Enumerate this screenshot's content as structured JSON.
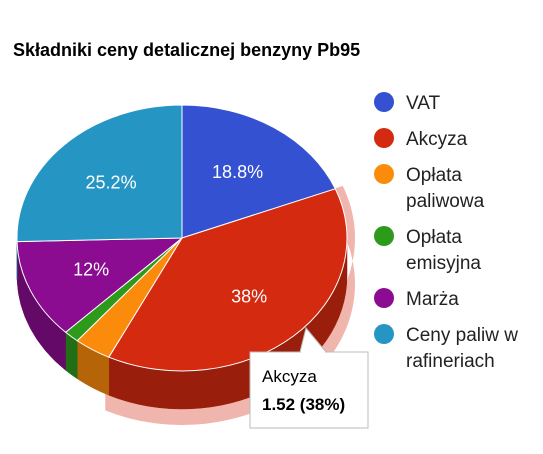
{
  "chart_data": {
    "type": "pie",
    "title": "Składniki ceny detalicznej benzyny Pb95",
    "slices": [
      {
        "name": "VAT",
        "label": "18.8%",
        "value": 18.8,
        "color": "#3451d1"
      },
      {
        "name": "Akcyza",
        "label": "38%",
        "value": 38,
        "color": "#d42a10"
      },
      {
        "name": "Opłata paliwowa",
        "label": "",
        "value": 3.6,
        "color": "#fb8c0b"
      },
      {
        "name": "Opłata emisyjna",
        "label": "",
        "value": 1.5,
        "color": "#2e9a1c"
      },
      {
        "name": "Marża",
        "label": "12%",
        "value": 12,
        "color": "#8b0c91"
      },
      {
        "name": "Ceny paliw w rafineriach",
        "label": "25.2%",
        "value": 25.2,
        "color": "#2596c4"
      }
    ],
    "legend": {
      "position": "right",
      "entries": [
        {
          "lines": [
            "VAT"
          ],
          "color": "#3451d1"
        },
        {
          "lines": [
            "Akcyza"
          ],
          "color": "#d42a10"
        },
        {
          "lines": [
            "Opłata",
            "paliwowa"
          ],
          "color": "#fb8c0b"
        },
        {
          "lines": [
            "Opłata",
            "emisyjna"
          ],
          "color": "#2e9a1c"
        },
        {
          "lines": [
            "Marża"
          ],
          "color": "#8b0c91"
        },
        {
          "lines": [
            "Ceny paliw w",
            "rafineriach"
          ],
          "color": "#2596c4"
        }
      ]
    },
    "tooltip": {
      "slice": "Akcyza",
      "line1": "Akcyza",
      "line2": "1.52 (38%)"
    },
    "highlighted_slice": "Akcyza",
    "style": "3d"
  }
}
